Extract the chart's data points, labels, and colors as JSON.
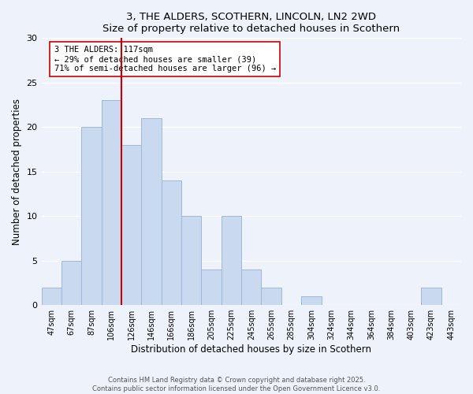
{
  "title": "3, THE ALDERS, SCOTHERN, LINCOLN, LN2 2WD",
  "subtitle": "Size of property relative to detached houses in Scothern",
  "xlabel": "Distribution of detached houses by size in Scothern",
  "ylabel": "Number of detached properties",
  "bar_color": "#c8d9f0",
  "bar_edge_color": "#a0b8d8",
  "bg_color": "#eef2fb",
  "grid_color": "#ffffff",
  "categories": [
    "47sqm",
    "67sqm",
    "87sqm",
    "106sqm",
    "126sqm",
    "146sqm",
    "166sqm",
    "186sqm",
    "205sqm",
    "225sqm",
    "245sqm",
    "265sqm",
    "285sqm",
    "304sqm",
    "324sqm",
    "344sqm",
    "364sqm",
    "384sqm",
    "403sqm",
    "423sqm",
    "443sqm"
  ],
  "values": [
    2,
    5,
    20,
    23,
    18,
    21,
    14,
    10,
    4,
    10,
    4,
    2,
    0,
    1,
    0,
    0,
    0,
    0,
    0,
    2,
    0
  ],
  "ylim": [
    0,
    30
  ],
  "yticks": [
    0,
    5,
    10,
    15,
    20,
    25,
    30
  ],
  "property_line_color": "#cc0000",
  "annotation_text": "3 THE ALDERS: 117sqm\n← 29% of detached houses are smaller (39)\n71% of semi-detached houses are larger (96) →",
  "annotation_box_color": "#ffffff",
  "annotation_box_edge_color": "#cc0000",
  "footer1": "Contains HM Land Registry data © Crown copyright and database right 2025.",
  "footer2": "Contains public sector information licensed under the Open Government Licence v3.0."
}
